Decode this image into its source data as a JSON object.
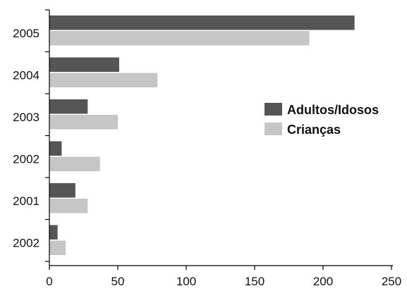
{
  "chart_data": {
    "type": "bar",
    "orientation": "horizontal",
    "categories": [
      "2005",
      "2004",
      "2003",
      "2002",
      "2001",
      "2002"
    ],
    "series": [
      {
        "name": "Adultos/Idosos",
        "values": [
          223,
          51,
          28,
          9,
          19,
          6
        ],
        "color": "#555555"
      },
      {
        "name": "Crianças",
        "values": [
          190,
          79,
          50,
          37,
          28,
          12
        ],
        "color": "#c6c6c6"
      }
    ],
    "title": "",
    "xlabel": "",
    "ylabel": "",
    "xlim": [
      0,
      250
    ],
    "xticks": [
      0,
      50,
      100,
      150,
      200,
      250
    ],
    "grid": false,
    "legend_position": "right"
  }
}
